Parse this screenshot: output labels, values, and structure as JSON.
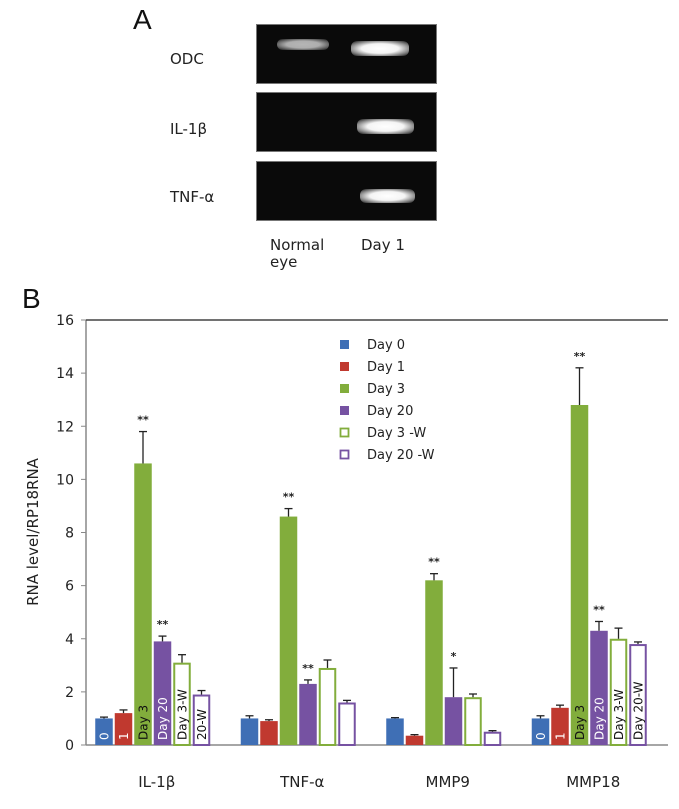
{
  "panel_a": {
    "letter": "A",
    "gel_rows": [
      {
        "label": "ODC",
        "band_intensity": [
          0.7,
          1.0
        ]
      },
      {
        "label": "IL-1β",
        "band_intensity": [
          0.0,
          1.0
        ]
      },
      {
        "label": "TNF-α",
        "band_intensity": [
          0.0,
          1.0
        ]
      }
    ],
    "lanes": [
      {
        "label_line1": "Normal",
        "label_line2": "eye"
      },
      {
        "label_line1": "Day 1",
        "label_line2": ""
      }
    ]
  },
  "panel_b": {
    "letter": "B"
  },
  "chart_data": {
    "type": "bar",
    "title": "",
    "xlabel": "",
    "ylabel": "RNA level/RP18RNA",
    "ylim": [
      0,
      16
    ],
    "yticks": [
      0,
      2,
      4,
      6,
      8,
      10,
      12,
      14,
      16
    ],
    "grid": false,
    "legend_position": "top-center",
    "categories": [
      "IL-1β",
      "TNF-α",
      "MMP9",
      "MMP18"
    ],
    "series": [
      {
        "name": "Day 0",
        "color": "#3f6fb5",
        "filled": true,
        "values": [
          1.0,
          1.0,
          1.0,
          1.0
        ],
        "errors": [
          0.05,
          0.1,
          0.03,
          0.1
        ],
        "bar_text": [
          "0",
          "",
          "",
          "0"
        ],
        "significance": [
          "",
          "",
          "",
          ""
        ]
      },
      {
        "name": "Day 1",
        "color": "#c0392f",
        "filled": true,
        "values": [
          1.2,
          0.9,
          0.35,
          1.4
        ],
        "errors": [
          0.12,
          0.05,
          0.04,
          0.1
        ],
        "bar_text": [
          "1",
          "",
          "",
          "1"
        ],
        "significance": [
          "",
          "",
          "",
          ""
        ]
      },
      {
        "name": "Day 3",
        "color": "#82ad3c",
        "filled": true,
        "values": [
          10.6,
          8.6,
          6.2,
          12.8
        ],
        "errors": [
          1.2,
          0.3,
          0.25,
          1.4
        ],
        "bar_text": [
          "Day 3",
          "",
          "",
          "Day 3"
        ],
        "significance": [
          "**",
          "**",
          "**",
          "**"
        ]
      },
      {
        "name": "Day 20",
        "color": "#7652a2",
        "filled": true,
        "values": [
          3.9,
          2.3,
          1.8,
          4.3
        ],
        "errors": [
          0.2,
          0.15,
          1.1,
          0.35
        ],
        "bar_text": [
          "Day 20",
          "",
          "",
          "Day 20"
        ],
        "significance": [
          "**",
          "**",
          "*",
          "**"
        ]
      },
      {
        "name": "Day 3 -W",
        "color": "#82ad3c",
        "filled": false,
        "values": [
          3.1,
          2.9,
          1.8,
          4.0
        ],
        "errors": [
          0.3,
          0.3,
          0.12,
          0.4
        ],
        "bar_text": [
          "Day 3-W",
          "",
          "",
          "Day 3-W"
        ],
        "significance": [
          "",
          "",
          "",
          ""
        ]
      },
      {
        "name": "Day 20 -W",
        "color": "#7652a2",
        "filled": false,
        "values": [
          1.9,
          1.6,
          0.5,
          3.8
        ],
        "errors": [
          0.15,
          0.08,
          0.04,
          0.08
        ],
        "bar_text": [
          "20-W",
          "",
          "",
          "Day 20-W"
        ],
        "significance": [
          "",
          "",
          "",
          ""
        ]
      }
    ]
  }
}
